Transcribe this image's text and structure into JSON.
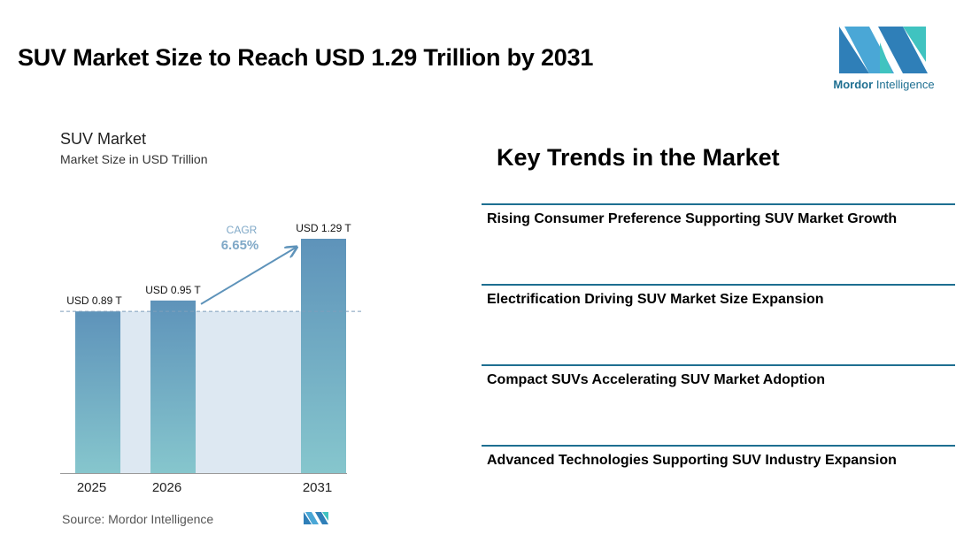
{
  "title": "SUV Market Size to Reach USD 1.29 Trillion by 2031",
  "brand": {
    "name_bold": "Mordor",
    "name_regular": "Intelligence"
  },
  "colors": {
    "accent": "#1e6f91",
    "bar_top": "#5e93ba",
    "bar_bottom": "#86c6cd",
    "band": "#dde8f2",
    "arrow": "#5e93ba",
    "cagr_label": "#7fa8c7"
  },
  "chart_data": {
    "type": "bar",
    "title": "SUV Market",
    "subtitle": "Market Size in USD Trillion",
    "categories": [
      "2025",
      "2026",
      "2031"
    ],
    "values": [
      0.89,
      0.95,
      1.29
    ],
    "data_labels": [
      "USD 0.89 T",
      "USD 0.95 T",
      "USD 1.29 T"
    ],
    "cagr": {
      "label": "CAGR",
      "value": "6.65%"
    },
    "ylim": [
      0,
      1.4
    ],
    "grid": false,
    "baseline_reference": 0.89
  },
  "source": "Source: Mordor Intelligence",
  "trends": {
    "title": "Key Trends in the Market",
    "items": [
      "Rising Consumer Preference Supporting SUV Market Growth",
      "Electrification Driving SUV Market Size Expansion",
      "Compact SUVs Accelerating SUV Market Adoption",
      "Advanced Technologies Supporting SUV Industry Expansion"
    ]
  }
}
